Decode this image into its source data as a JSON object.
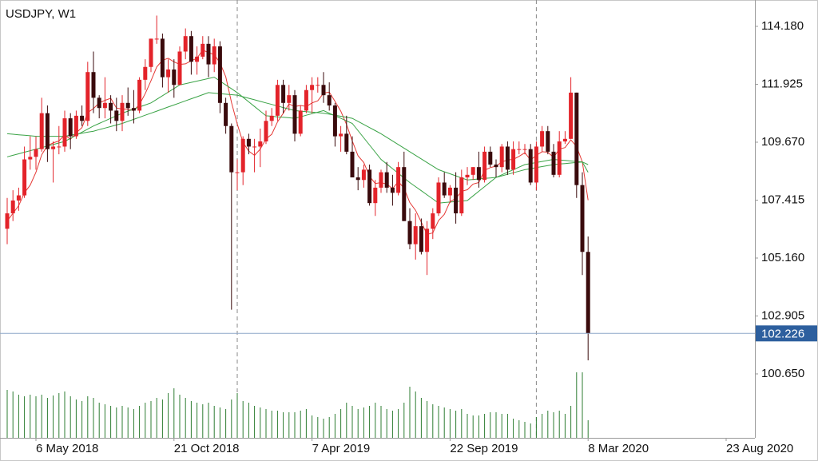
{
  "chart_data": {
    "type": "candlestick",
    "title": "USDJPY, W1",
    "categories": [
      null,
      null,
      null,
      null,
      null,
      "6 May 2018",
      null,
      null,
      null,
      null,
      null,
      null,
      null,
      null,
      null,
      null,
      null,
      null,
      null,
      null,
      null,
      null,
      null,
      null,
      null,
      null,
      null,
      null,
      null,
      "21 Oct 2018",
      null,
      null,
      null,
      null,
      null,
      null,
      null,
      null,
      null,
      null,
      null,
      null,
      null,
      null,
      null,
      null,
      null,
      null,
      null,
      null,
      null,
      null,
      null,
      "7 Apr 2019",
      null,
      null,
      null,
      null,
      null,
      null,
      null,
      null,
      null,
      null,
      null,
      null,
      null,
      null,
      null,
      null,
      null,
      null,
      null,
      null,
      null,
      null,
      null,
      "22 Sep 2019",
      null,
      null,
      null,
      null,
      null,
      null,
      null,
      null,
      null,
      null,
      null,
      null,
      null,
      null,
      null,
      null,
      null,
      null,
      null,
      null,
      null,
      null,
      null,
      "8 Mar 2020",
      null,
      null,
      null,
      null,
      null,
      null,
      null,
      null,
      null,
      null,
      null,
      null,
      null,
      null,
      null,
      null,
      null,
      null,
      null,
      null,
      null,
      null,
      null,
      "23 Aug 2020"
    ],
    "open": [
      106.3,
      106.9,
      107.4,
      107.6,
      109.0,
      109.1,
      109.4,
      110.8,
      109.4,
      109.5,
      109.5,
      110.6,
      109.9,
      110.7,
      110.5,
      112.4,
      111.4,
      111.0,
      111.2,
      110.9,
      110.5,
      111.2,
      111.0,
      110.9,
      112.1,
      112.6,
      113.7,
      113.7,
      112.2,
      112.5,
      111.9,
      113.2,
      113.8,
      112.8,
      113.0,
      113.5,
      112.7,
      113.4,
      111.2,
      110.3,
      108.5,
      108.5,
      109.8,
      109.5,
      109.5,
      109.7,
      110.5,
      110.7,
      111.9,
      111.2,
      111.5,
      110.0,
      110.9,
      111.7,
      111.9,
      111.9,
      111.5,
      111.1,
      109.9,
      110.0,
      109.3,
      108.3,
      108.2,
      108.6,
      107.3,
      107.9,
      108.5,
      107.9,
      107.7,
      108.7,
      106.6,
      105.7,
      106.4,
      105.4,
      106.3,
      106.9,
      108.1,
      107.6,
      107.9,
      106.9,
      108.3,
      108.4,
      108.7,
      108.2,
      109.3,
      108.8,
      108.7,
      109.5,
      108.6,
      109.4,
      109.4,
      109.4,
      108.1,
      109.5,
      110.1,
      109.3,
      108.4,
      109.7,
      109.8,
      111.6,
      108.0,
      105.4,
      null,
      null,
      null,
      null,
      null,
      null,
      null,
      null,
      null,
      null,
      null,
      null,
      null,
      null,
      null,
      null,
      null,
      null,
      null,
      null,
      null,
      null,
      null,
      null
    ],
    "high": [
      107.5,
      107.8,
      107.9,
      109.5,
      109.9,
      109.9,
      111.4,
      111.1,
      109.7,
      110.3,
      110.9,
      110.8,
      110.9,
      111.1,
      112.8,
      113.2,
      111.5,
      112.2,
      111.5,
      111.4,
      111.5,
      111.8,
      111.7,
      112.2,
      112.9,
      113.7,
      114.6,
      113.9,
      112.9,
      112.9,
      113.4,
      114.1,
      114.0,
      113.4,
      113.8,
      113.8,
      113.7,
      113.6,
      111.4,
      110.4,
      109.0,
      109.9,
      110.0,
      109.8,
      110.2,
      110.9,
      111.0,
      112.1,
      112.1,
      111.9,
      111.7,
      111.1,
      111.9,
      112.2,
      112.2,
      112.4,
      112.0,
      111.2,
      110.3,
      110.7,
      109.9,
      108.7,
      108.8,
      108.8,
      108.2,
      108.6,
      108.9,
      108.4,
      108.9,
      109.3,
      107.1,
      106.9,
      106.7,
      106.6,
      107.1,
      108.3,
      108.5,
      108.0,
      108.5,
      108.6,
      108.7,
      108.7,
      109.3,
      109.5,
      109.5,
      109.0,
      109.6,
      109.7,
      109.7,
      109.7,
      109.6,
      109.6,
      109.7,
      110.3,
      110.3,
      109.6,
      110.1,
      110.1,
      112.2,
      111.6,
      108.5,
      106.0,
      null,
      null,
      null,
      null,
      null,
      null,
      null,
      null,
      null,
      null,
      null,
      null,
      null,
      null,
      null,
      null,
      null,
      null,
      null,
      null,
      null,
      null,
      null,
      null
    ],
    "low": [
      105.7,
      106.6,
      107.0,
      107.5,
      108.6,
      108.6,
      109.3,
      108.9,
      108.1,
      109.2,
      109.3,
      109.4,
      109.8,
      110.3,
      110.3,
      110.8,
      110.6,
      110.6,
      110.4,
      110.1,
      110.1,
      110.7,
      110.4,
      110.8,
      111.7,
      112.4,
      113.5,
      111.8,
      111.6,
      111.4,
      111.9,
      112.9,
      112.3,
      112.3,
      112.9,
      112.2,
      112.4,
      110.8,
      110.0,
      103.15,
      107.8,
      108.0,
      109.2,
      108.5,
      108.7,
      109.6,
      110.3,
      110.5,
      110.8,
      110.9,
      109.7,
      109.9,
      110.8,
      110.8,
      111.6,
      111.2,
      110.9,
      109.5,
      109.3,
      109.2,
      108.3,
      107.8,
      107.9,
      107.2,
      106.8,
      107.7,
      107.7,
      107.2,
      107.6,
      106.6,
      105.5,
      105.1,
      105.3,
      104.5,
      105.9,
      106.8,
      107.5,
      107.3,
      106.5,
      106.8,
      108.0,
      108.2,
      107.9,
      108.1,
      108.7,
      108.3,
      108.5,
      108.4,
      108.4,
      109.2,
      109.2,
      108.0,
      107.8,
      109.3,
      109.2,
      108.3,
      108.3,
      109.6,
      109.8,
      107.5,
      104.5,
      101.18,
      null,
      null,
      null,
      null,
      null,
      null,
      null,
      null,
      null,
      null,
      null,
      null,
      null,
      null,
      null,
      null,
      null,
      null,
      null,
      null,
      null,
      null,
      null,
      null
    ],
    "close": [
      106.9,
      107.4,
      107.6,
      109.0,
      109.1,
      109.4,
      110.8,
      109.4,
      109.5,
      109.5,
      110.6,
      109.9,
      110.7,
      110.5,
      112.4,
      111.4,
      111.0,
      111.2,
      110.9,
      110.5,
      111.2,
      111.0,
      110.9,
      112.1,
      112.6,
      113.7,
      113.7,
      112.2,
      112.5,
      111.9,
      113.2,
      113.8,
      112.8,
      113.0,
      113.5,
      112.7,
      113.4,
      111.2,
      110.3,
      108.5,
      108.5,
      109.8,
      109.5,
      109.5,
      109.7,
      110.5,
      110.7,
      111.9,
      111.2,
      111.5,
      110.0,
      110.9,
      111.7,
      111.9,
      111.9,
      111.5,
      111.1,
      109.9,
      110.0,
      109.3,
      108.3,
      108.2,
      108.6,
      107.3,
      107.9,
      108.5,
      107.9,
      107.7,
      108.7,
      106.6,
      105.7,
      106.4,
      105.4,
      106.3,
      106.9,
      108.1,
      107.6,
      107.9,
      106.9,
      108.3,
      108.4,
      108.7,
      108.2,
      109.3,
      108.8,
      108.7,
      109.5,
      108.6,
      109.4,
      109.4,
      109.4,
      108.1,
      109.5,
      110.1,
      109.3,
      108.4,
      109.7,
      109.8,
      111.6,
      108.0,
      105.4,
      102.226,
      null,
      null,
      null,
      null,
      null,
      null,
      null,
      null,
      null,
      null,
      null,
      null,
      null,
      null,
      null,
      null,
      null,
      null,
      null,
      null,
      null,
      null,
      null,
      null
    ],
    "up_color": "#e3232a",
    "down_color": "#3a0a0c",
    "overlays": [
      {
        "color": "#e53935",
        "values": [
          106.6,
          106.9,
          107.2,
          107.7,
          108.0,
          108.5,
          109.18,
          109.54,
          109.64,
          109.72,
          109.96,
          109.78,
          110.04,
          110.24,
          110.82,
          110.98,
          111.2,
          111.3,
          111.38,
          111.0,
          110.96,
          110.96,
          110.9,
          111.14,
          111.56,
          112.06,
          112.6,
          112.86,
          112.94,
          112.8,
          112.7,
          112.72,
          112.84,
          112.94,
          113.26,
          113.16,
          113.08,
          112.76,
          112.22,
          111.22,
          110.38,
          109.66,
          109.32,
          109.16,
          109.4,
          109.8,
          109.98,
          110.46,
          110.8,
          111.16,
          111.06,
          111.1,
          111.06,
          111.2,
          111.28,
          111.58,
          111.62,
          111.26,
          110.88,
          110.36,
          109.72,
          109.14,
          108.88,
          108.34,
          108.06,
          108.1,
          108.04,
          107.86,
          108.14,
          107.88,
          107.32,
          107.02,
          106.56,
          106.08,
          106.14,
          106.62,
          106.86,
          107.36,
          107.48,
          107.76,
          107.82,
          108.04,
          108.1,
          108.58,
          108.68,
          108.74,
          108.9,
          108.98,
          109.0,
          109.12,
          109.26,
          108.98,
          109.16,
          109.3,
          109.28,
          109.08,
          109.4,
          109.46,
          109.76,
          109.5,
          108.9,
          107.41,
          null,
          null,
          null,
          null,
          null,
          null,
          null,
          null,
          null,
          null,
          null,
          null,
          null,
          null,
          null,
          null,
          null,
          null,
          null,
          null,
          null,
          null,
          null,
          null
        ]
      },
      {
        "color": "#3aa346",
        "values": [
          109.1,
          109.16,
          109.22,
          109.28,
          109.34,
          109.4,
          109.46,
          109.52,
          109.58,
          109.64,
          109.7,
          109.82,
          109.94,
          110.06,
          110.18,
          110.3,
          110.4,
          110.5,
          110.6,
          110.7,
          110.8,
          110.88,
          110.96,
          111.04,
          111.12,
          111.2,
          111.34,
          111.48,
          111.62,
          111.76,
          111.9,
          111.95,
          112.0,
          112.05,
          112.1,
          112.15,
          112.2,
          112.05,
          111.9,
          111.75,
          111.6,
          111.42,
          111.24,
          111.06,
          110.88,
          110.7,
          110.68,
          110.66,
          110.64,
          110.62,
          110.6,
          110.66,
          110.72,
          110.78,
          110.84,
          110.9,
          110.8,
          110.7,
          110.6,
          110.5,
          110.4,
          110.12,
          109.84,
          109.56,
          109.28,
          109.0,
          108.82,
          108.64,
          108.46,
          108.28,
          108.1,
          107.94,
          107.78,
          107.62,
          107.46,
          107.3,
          107.32,
          107.34,
          107.36,
          107.38,
          107.4,
          107.58,
          107.76,
          107.94,
          108.12,
          108.3,
          108.4,
          108.5,
          108.6,
          108.7,
          108.8,
          108.84,
          108.88,
          108.92,
          108.96,
          109.0,
          108.98,
          108.96,
          108.94,
          108.92,
          108.9,
          108.5,
          null,
          null,
          null,
          null,
          null,
          null,
          null,
          null,
          null,
          null,
          null,
          null,
          null,
          null,
          null,
          null,
          null,
          null,
          null,
          null,
          null,
          null,
          null,
          null
        ]
      },
      {
        "color": "#3aa346",
        "values": [
          110.0,
          109.98,
          109.96,
          109.94,
          109.92,
          109.9,
          109.9,
          109.9,
          109.9,
          109.9,
          109.9,
          109.94,
          109.98,
          110.02,
          110.06,
          110.1,
          110.16,
          110.22,
          110.28,
          110.34,
          110.4,
          110.48,
          110.56,
          110.64,
          110.72,
          110.8,
          110.88,
          110.96,
          111.04,
          111.12,
          111.2,
          111.28,
          111.36,
          111.44,
          111.52,
          111.6,
          111.58,
          111.56,
          111.54,
          111.52,
          111.5,
          111.44,
          111.38,
          111.32,
          111.26,
          111.2,
          111.14,
          111.08,
          111.02,
          110.96,
          110.9,
          110.88,
          110.86,
          110.84,
          110.82,
          110.8,
          110.76,
          110.72,
          110.68,
          110.64,
          110.6,
          110.48,
          110.36,
          110.24,
          110.12,
          110.0,
          109.86,
          109.72,
          109.58,
          109.44,
          109.3,
          109.16,
          109.02,
          108.88,
          108.74,
          108.6,
          108.52,
          108.44,
          108.36,
          108.28,
          108.2,
          108.22,
          108.24,
          108.26,
          108.28,
          108.3,
          108.36,
          108.42,
          108.48,
          108.54,
          108.6,
          108.64,
          108.68,
          108.72,
          108.76,
          108.8,
          108.82,
          108.84,
          108.86,
          108.88,
          108.9,
          108.8,
          null,
          null,
          null,
          null,
          null,
          null,
          null,
          null,
          null,
          null,
          null,
          null,
          null,
          null,
          null,
          null,
          null,
          null,
          null,
          null,
          null,
          null,
          null,
          null
        ]
      }
    ],
    "volume": {
      "color": "#2e7d32",
      "values": [
        60,
        58,
        54,
        52,
        54,
        52,
        54,
        50,
        53,
        56,
        58,
        52,
        48,
        46,
        52,
        50,
        44,
        42,
        40,
        38,
        40,
        38,
        36,
        40,
        44,
        46,
        50,
        48,
        56,
        62,
        54,
        50,
        46,
        44,
        42,
        44,
        40,
        38,
        36,
        48,
        56,
        46,
        44,
        40,
        38,
        36,
        34,
        34,
        32,
        32,
        32,
        34,
        36,
        28,
        26,
        24,
        26,
        30,
        36,
        44,
        40,
        36,
        38,
        40,
        44,
        40,
        36,
        34,
        36,
        44,
        64,
        58,
        50,
        46,
        42,
        40,
        38,
        36,
        34,
        36,
        30,
        28,
        28,
        30,
        32,
        32,
        30,
        30,
        24,
        22,
        20,
        18,
        26,
        30,
        34,
        32,
        34,
        30,
        40,
        82,
        82,
        22,
        null,
        null,
        null,
        null,
        null,
        null,
        null,
        null,
        null,
        null,
        null,
        null,
        null,
        null,
        null,
        null,
        null,
        null,
        null,
        null,
        null,
        null,
        null,
        null
      ]
    },
    "ylim": [
      98.161,
      115.206
    ],
    "yticks": [
      {
        "value": 114.18,
        "label": "114.180"
      },
      {
        "value": 111.925,
        "label": "111.925"
      },
      {
        "value": 109.67,
        "label": "109.670"
      },
      {
        "value": 107.415,
        "label": "107.415"
      },
      {
        "value": 105.16,
        "label": "105.160"
      },
      {
        "value": 102.905,
        "label": "102.905"
      },
      {
        "value": 100.65,
        "label": "100.650"
      }
    ],
    "last_price": {
      "value": 102.226,
      "label": "102.226",
      "line_color": "#8ea7c9",
      "box_color": "#2d5f9e"
    }
  }
}
